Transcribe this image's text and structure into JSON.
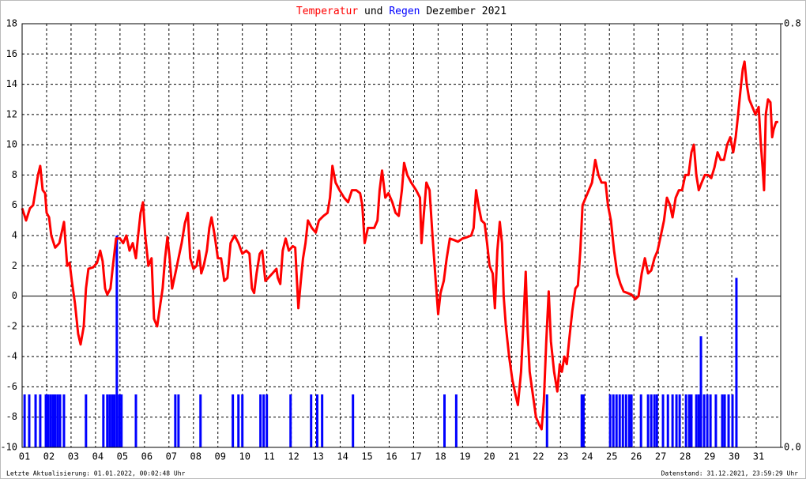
{
  "chart_data": {
    "type": "line",
    "title": "Dezember 2021",
    "title_joiner": "und",
    "footer_left": "Letzte Aktualisierung: 01.01.2022, 00:02:48 Uhr",
    "footer_right": "Datenstand: 31.12.2021, 23:59:29 Uhr",
    "xlim": [
      0,
      31
    ],
    "xticks": [
      {
        "value": 0,
        "label": "01"
      },
      {
        "value": 1,
        "label": "02"
      },
      {
        "value": 2,
        "label": "03"
      },
      {
        "value": 3,
        "label": "04"
      },
      {
        "value": 4,
        "label": "05"
      },
      {
        "value": 5,
        "label": "06"
      },
      {
        "value": 6,
        "label": "07"
      },
      {
        "value": 7,
        "label": "08"
      },
      {
        "value": 8,
        "label": "09"
      },
      {
        "value": 9,
        "label": "10"
      },
      {
        "value": 10,
        "label": "11"
      },
      {
        "value": 11,
        "label": "12"
      },
      {
        "value": 12,
        "label": "13"
      },
      {
        "value": 13,
        "label": "14"
      },
      {
        "value": 14,
        "label": "15"
      },
      {
        "value": 15,
        "label": "16"
      },
      {
        "value": 16,
        "label": "17"
      },
      {
        "value": 17,
        "label": "18"
      },
      {
        "value": 18,
        "label": "19"
      },
      {
        "value": 19,
        "label": "20"
      },
      {
        "value": 20,
        "label": "21"
      },
      {
        "value": 21,
        "label": "22"
      },
      {
        "value": 22,
        "label": "23"
      },
      {
        "value": 23,
        "label": "24"
      },
      {
        "value": 24,
        "label": "25"
      },
      {
        "value": 25,
        "label": "26"
      },
      {
        "value": 26,
        "label": "27"
      },
      {
        "value": 27,
        "label": "28"
      },
      {
        "value": 28,
        "label": "29"
      },
      {
        "value": 29,
        "label": "30"
      },
      {
        "value": 30,
        "label": "31"
      }
    ],
    "ylim": [
      -10,
      18
    ],
    "yticks": [
      -10,
      -8,
      -6,
      -4,
      -2,
      0,
      2,
      4,
      6,
      8,
      10,
      12,
      14,
      16,
      18
    ],
    "y2lim": [
      0,
      0.8
    ],
    "y2ticks": [
      {
        "value": 0,
        "label": "0.0"
      },
      {
        "value": 0.8,
        "label": "0.8"
      }
    ],
    "grid": true,
    "series": [
      {
        "name": "Temperatur",
        "color": "#ff0000",
        "type": "line",
        "x": [
          0,
          0.16,
          0.32,
          0.45,
          0.55,
          0.65,
          0.74,
          0.84,
          0.94,
          1.0,
          1.1,
          1.19,
          1.35,
          1.52,
          1.71,
          1.84,
          1.94,
          2.03,
          2.16,
          2.29,
          2.39,
          2.52,
          2.61,
          2.71,
          2.9,
          3.06,
          3.19,
          3.29,
          3.39,
          3.48,
          3.61,
          3.71,
          3.84,
          4.0,
          4.13,
          4.26,
          4.39,
          4.52,
          4.65,
          4.74,
          4.84,
          4.94,
          5.03,
          5.16,
          5.29,
          5.39,
          5.52,
          5.65,
          5.74,
          5.84,
          5.94,
          6.03,
          6.13,
          6.26,
          6.39,
          6.52,
          6.65,
          6.77,
          6.87,
          7.0,
          7.13,
          7.23,
          7.32,
          7.42,
          7.55,
          7.65,
          7.74,
          7.87,
          8.0,
          8.13,
          8.26,
          8.39,
          8.52,
          8.68,
          8.84,
          9.0,
          9.16,
          9.29,
          9.39,
          9.48,
          9.58,
          9.71,
          9.81,
          9.94,
          10.06,
          10.23,
          10.39,
          10.45,
          10.55,
          10.65,
          10.77,
          10.9,
          11.06,
          11.16,
          11.23,
          11.29,
          11.39,
          11.48,
          11.58,
          11.68,
          11.84,
          12.0,
          12.13,
          12.32,
          12.48,
          12.58,
          12.68,
          12.81,
          12.97,
          13.16,
          13.32,
          13.48,
          13.65,
          13.81,
          13.9,
          14.0,
          14.13,
          14.39,
          14.52,
          14.61,
          14.71,
          14.84,
          14.97,
          15.13,
          15.26,
          15.39,
          15.52,
          15.61,
          15.74,
          15.9,
          16.1,
          16.26,
          16.32,
          16.42,
          16.52,
          16.65,
          16.77,
          16.9,
          17.0,
          17.1,
          17.23,
          17.35,
          17.48,
          17.65,
          17.81,
          18.0,
          18.19,
          18.35,
          18.45,
          18.55,
          18.65,
          18.77,
          18.9,
          19.0,
          19.1,
          19.23,
          19.32,
          19.42,
          19.52,
          19.61,
          19.68,
          19.77,
          19.9,
          20.03,
          20.16,
          20.26,
          20.39,
          20.48,
          20.58,
          20.65,
          20.74,
          20.87,
          21.0,
          21.13,
          21.23,
          21.32,
          21.42,
          21.52,
          21.61,
          21.74,
          21.87,
          21.97,
          22.06,
          22.16,
          22.26,
          22.35,
          22.48,
          22.61,
          22.71,
          22.81,
          22.9,
          23.03,
          23.16,
          23.29,
          23.42,
          23.55,
          23.68,
          23.84,
          23.94,
          24.06,
          24.19,
          24.32,
          24.45,
          24.58,
          24.74,
          24.9,
          25.06,
          25.19,
          25.32,
          25.45,
          25.58,
          25.71,
          25.84,
          25.97,
          26.1,
          26.23,
          26.35,
          26.48,
          26.58,
          26.71,
          26.84,
          26.97,
          27.1,
          27.23,
          27.35,
          27.45,
          27.55,
          27.65,
          27.77,
          27.9,
          28.03,
          28.16,
          28.29,
          28.42,
          28.55,
          28.68,
          28.81,
          28.94,
          29.06,
          29.16,
          29.26,
          29.35,
          29.45,
          29.52,
          29.61,
          29.71,
          29.84,
          29.97,
          30.1,
          30.19,
          30.26,
          30.32,
          30.39,
          30.48,
          30.58,
          30.65,
          30.71,
          30.81,
          30.9
        ],
        "values": [
          5.8,
          5.0,
          5.8,
          6.0,
          7.0,
          8.0,
          8.6,
          7.0,
          6.8,
          5.5,
          5.2,
          4.0,
          3.2,
          3.5,
          4.9,
          2.0,
          2.2,
          1.0,
          -0.5,
          -2.5,
          -3.2,
          -2.0,
          0.5,
          1.8,
          1.9,
          2.2,
          3.0,
          2.3,
          0.5,
          0.1,
          0.5,
          2.0,
          3.8,
          3.8,
          3.5,
          4.0,
          3.0,
          3.5,
          2.5,
          4.0,
          5.5,
          6.2,
          4.0,
          2.0,
          2.5,
          -1.5,
          -2.0,
          -0.5,
          0.5,
          2.5,
          3.9,
          2.5,
          0.5,
          1.5,
          2.5,
          3.5,
          4.8,
          5.5,
          2.5,
          1.8,
          2.0,
          3.0,
          1.5,
          2.0,
          3.0,
          4.5,
          5.2,
          4.0,
          2.5,
          2.5,
          1.0,
          1.2,
          3.5,
          4.0,
          3.5,
          2.8,
          3.0,
          2.8,
          0.5,
          0.2,
          1.5,
          2.8,
          3.0,
          1.0,
          1.2,
          1.5,
          1.8,
          1.2,
          0.8,
          3.0,
          3.8,
          3.0,
          3.3,
          3.2,
          1.0,
          -0.8,
          1.0,
          2.5,
          3.5,
          5.0,
          4.5,
          4.2,
          5.0,
          5.3,
          5.5,
          6.5,
          8.6,
          7.5,
          7.0,
          6.5,
          6.2,
          7.0,
          7.0,
          6.8,
          6.0,
          3.5,
          4.5,
          4.5,
          5.0,
          7.0,
          8.3,
          6.5,
          6.8,
          6.2,
          5.5,
          5.3,
          7.0,
          8.8,
          8.0,
          7.5,
          7.0,
          6.5,
          3.5,
          5.5,
          7.5,
          7.0,
          4.0,
          1.0,
          -1.2,
          0.2,
          1.0,
          2.5,
          3.8,
          3.7,
          3.6,
          3.8,
          3.9,
          4.0,
          4.5,
          7.0,
          6.0,
          5.0,
          4.8,
          3.5,
          2.0,
          1.5,
          -0.8,
          3.0,
          4.9,
          3.5,
          0,
          -2.0,
          -4.0,
          -5.5,
          -6.5,
          -7.2,
          -5.0,
          -2.0,
          1.6,
          -2.0,
          -5.0,
          -6.5,
          -8.0,
          -8.5,
          -8.8,
          -7.0,
          -3.0,
          0.3,
          -3.0,
          -5.0,
          -6.3,
          -4.5,
          -5.0,
          -4.0,
          -4.5,
          -3.0,
          -1.0,
          0.5,
          0.7,
          3.0,
          6.0,
          6.5,
          7.0,
          7.5,
          9.0,
          8.0,
          7.5,
          7.5,
          6.0,
          5.0,
          3.0,
          1.5,
          0.8,
          0.3,
          0.2,
          0.1,
          -0.2,
          0,
          1.5,
          2.5,
          1.5,
          1.7,
          2.5,
          3.0,
          4.0,
          5.0,
          6.5,
          6.0,
          5.2,
          6.5,
          7.0,
          7.0,
          8.0,
          8.0,
          9.5,
          10.0,
          8.0,
          7.0,
          7.5,
          8.0,
          8.0,
          7.8,
          8.5,
          9.5,
          9.0,
          9.0,
          10.0,
          10.5,
          9.5,
          10.5,
          12.0,
          13.5,
          15.0,
          15.5,
          14.0,
          13.0,
          12.5,
          12.0,
          12.5,
          10.0,
          8.5,
          7.0,
          12.0,
          13.0,
          12.8,
          10.5,
          11.0,
          11.5,
          11.5
        ]
      },
      {
        "name": "Regen",
        "color": "#0000ff",
        "type": "bar",
        "axis": "y2",
        "x": [
          0.1,
          0.29,
          0.55,
          0.74,
          0.97,
          1.06,
          1.16,
          1.26,
          1.35,
          1.45,
          1.55,
          1.71,
          2.61,
          3.32,
          3.48,
          3.58,
          3.68,
          3.77,
          3.87,
          3.97,
          4.06,
          4.65,
          6.26,
          6.39,
          7.29,
          8.61,
          8.84,
          9.0,
          9.74,
          9.87,
          10.0,
          10.97,
          11.81,
          12.06,
          12.26,
          13.52,
          17.26,
          17.74,
          21.45,
          22.87,
          22.94,
          24.03,
          24.16,
          24.29,
          24.42,
          24.55,
          24.68,
          24.81,
          24.9,
          25.29,
          25.58,
          25.71,
          25.84,
          25.94,
          26.19,
          26.39,
          26.58,
          26.74,
          26.87,
          27.13,
          27.26,
          27.35,
          27.55,
          27.65,
          27.74,
          27.87,
          28.0,
          28.13,
          28.35,
          28.61,
          28.71,
          28.87,
          29.03,
          29.19
        ],
        "values": [
          0.1,
          0.1,
          0.1,
          0.1,
          0.1,
          0.1,
          0.1,
          0.1,
          0.1,
          0.1,
          0.1,
          0.1,
          0.1,
          0.1,
          0.1,
          0.1,
          0.1,
          0.1,
          0.4,
          0.1,
          0.1,
          0.1,
          0.1,
          0.1,
          0.1,
          0.1,
          0.1,
          0.1,
          0.1,
          0.1,
          0.1,
          0.1,
          0.1,
          0.1,
          0.1,
          0.1,
          0.1,
          0.1,
          0.1,
          0.1,
          0.1,
          0.1,
          0.1,
          0.1,
          0.1,
          0.1,
          0.1,
          0.1,
          0.1,
          0.1,
          0.1,
          0.1,
          0.1,
          0.1,
          0.1,
          0.1,
          0.1,
          0.1,
          0.1,
          0.1,
          0.1,
          0.1,
          0.1,
          0.1,
          0.21,
          0.1,
          0.1,
          0.1,
          0.1,
          0.1,
          0.1,
          0.1,
          0.1,
          0.32
        ]
      }
    ]
  }
}
